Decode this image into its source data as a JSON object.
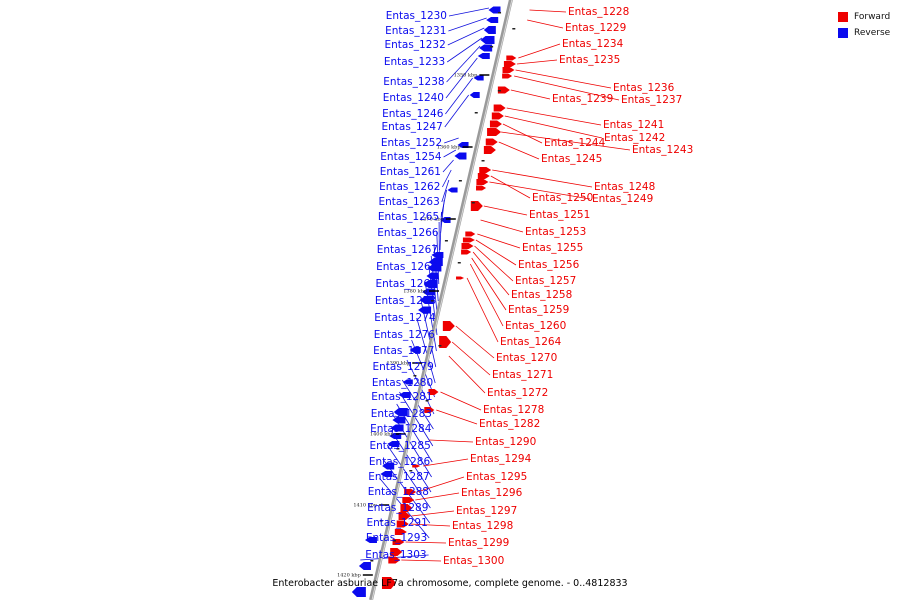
{
  "caption": "Enterobacter asburiae LF7a chromosome, complete genome. - 0..4812833",
  "legend": [
    {
      "label": "Forward",
      "color": "#ee0000"
    },
    {
      "label": "Reverse",
      "color": "#0a0aee"
    }
  ],
  "colors": {
    "forward": "#ee0000",
    "reverse": "#0a0aee",
    "backbone": "#888888",
    "leader_forward": "#ee0000",
    "leader_reverse": "#1111dd"
  },
  "ticks": [
    "1350 kbp",
    "1360 kbp",
    "1370 kbp",
    "1380 kbp",
    "1390 kbp",
    "1400 kbp",
    "1410 kbp",
    "1420 kbp"
  ],
  "reverse_genes": [
    "Entas_1230",
    "Entas_1231",
    "Entas_1232",
    "Entas_1233",
    "Entas_1238",
    "Entas_1240",
    "Entas_1246",
    "Entas_1247",
    "Entas_1252",
    "Entas_1254",
    "Entas_1261",
    "Entas_1262",
    "Entas_1263",
    "Entas_1265",
    "Entas_1266",
    "Entas_1267",
    "Entas_1268",
    "Entas_1269",
    "Entas_1273",
    "Entas_1274",
    "Entas_1276",
    "Entas_1277",
    "Entas_1279",
    "Entas_1280",
    "Entas_1281",
    "Entas_1283",
    "Entas_1284",
    "Entas_1285",
    "Entas_1286",
    "Entas_1287",
    "Entas_1288",
    "Entas_1289",
    "Entas_1291",
    "Entas_1293",
    "Entas_1303"
  ],
  "forward_genes": [
    "Entas_1228",
    "Entas_1229",
    "Entas_1234",
    "Entas_1235",
    "Entas_1236",
    "Entas_1239",
    "Entas_1237",
    "Entas_1241",
    "Entas_1242",
    "Entas_1244",
    "Entas_1243",
    "Entas_1245",
    "Entas_1248",
    "Entas_1250",
    "Entas_1249",
    "Entas_1251",
    "Entas_1253",
    "Entas_1255",
    "Entas_1256",
    "Entas_1257",
    "Entas_1258",
    "Entas_1259",
    "Entas_1260",
    "Entas_1264",
    "Entas_1270",
    "Entas_1271",
    "Entas_1272",
    "Entas_1278",
    "Entas_1282",
    "Entas_1290",
    "Entas_1294",
    "Entas_1295",
    "Entas_1296",
    "Entas_1297",
    "Entas_1298",
    "Entas_1299",
    "Entas_1300"
  ]
}
